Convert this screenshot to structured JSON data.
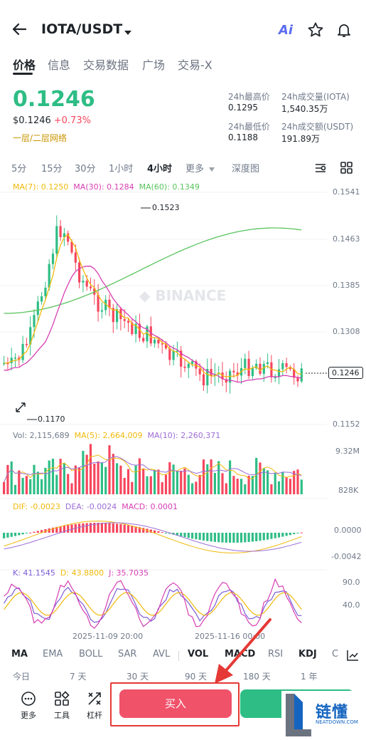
{
  "header": {
    "pair": "IOTA/USDT",
    "ai_label": "Ai"
  },
  "tabs": [
    "价格",
    "信息",
    "交易数据",
    "广场",
    "交易-X"
  ],
  "price": {
    "last": "0.1246",
    "usd": "$0.1246",
    "change": "+0.73%",
    "network": "一层/二层网络"
  },
  "stats": {
    "high_label": "24h最高价",
    "high_value": "0.1295",
    "vol_label": "24h成交量(IOTA)",
    "vol_value": "1,540.35万",
    "low_label": "24h最低价",
    "low_value": "0.1188",
    "amt_label": "24h成交额(USDT)",
    "amt_value": "191.89万"
  },
  "intervals": [
    "5分",
    "15分",
    "30分",
    "1小时",
    "4小时",
    "更多",
    "深度图"
  ],
  "ma_legend": {
    "ma7": "MA(7): 0.1250",
    "ma30": "MA(30): 0.1284",
    "ma60": "MA(60): 0.1349"
  },
  "vol_legend": {
    "vol": "Vol: 2,115,689",
    "ma5": "MA(5): 2,664,009",
    "ma10": "MA(10): 2,260,371"
  },
  "macd_legend": {
    "dif": "DIF: -0.0023",
    "dea": "DEA: -0.0024",
    "macd": "MACD: 0.0001"
  },
  "kdj_legend": {
    "k": "K: 41.1545",
    "d": "D: 43.8800",
    "j": "J: 35.7035"
  },
  "chart_labels": {
    "price_axis": [
      "0.1541",
      "0.1463",
      "0.1385",
      "0.1308",
      "0.1152"
    ],
    "current_price": "0.1246",
    "high_marker": "0.1523",
    "low_marker": "0.1170",
    "vol_axis": [
      "9.32M",
      "828K"
    ],
    "macd_axis": [
      "0.0000",
      "-0.0042"
    ],
    "kdj_axis": [
      "90.0",
      "40.0"
    ],
    "dates": [
      "2025-11-09 20:00",
      "2025-11-16 00:00"
    ]
  },
  "chart_data": {
    "type": "candlestick",
    "y_axis_ticks": [
      0.1541,
      0.1463,
      0.1385,
      0.1308,
      0.1246,
      0.1152
    ],
    "period_high": 0.1523,
    "period_low": 0.117,
    "last_price": 0.1246,
    "x_tick_labels": [
      "2025-11-09 20:00",
      "2025-11-16 00:00"
    ],
    "volume_axis": [
      "9.32M",
      "828K"
    ],
    "macd_axis": [
      0.0,
      -0.0042
    ],
    "kdj_axis": [
      90.0,
      40.0
    ]
  },
  "indicator_tabs": [
    "MA",
    "EMA",
    "BOLL",
    "SAR",
    "AVL",
    "VOL",
    "MACD",
    "RSI",
    "KDJ",
    "C"
  ],
  "range_tabs": [
    "今日",
    "7 天",
    "30 天",
    "90 天",
    "180 天",
    "1 年"
  ],
  "tools": [
    "更多",
    "工具",
    "杠杆"
  ],
  "buy_label": "买入",
  "watermark": {
    "title": "链懂",
    "site": "NEATDOWN.COM"
  },
  "colors": {
    "up": "#2ebd85",
    "down": "#f6465d",
    "ma7": "#f0b90b",
    "ma30": "#d63eb3",
    "ma60": "#58c45c",
    "kdj_k": "#7b5cd6"
  }
}
